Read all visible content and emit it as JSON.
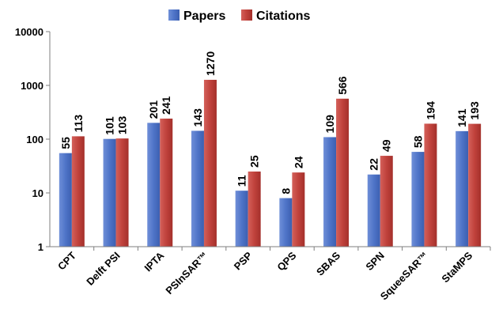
{
  "chart_data": {
    "type": "bar",
    "yscale": "log",
    "ylim": [
      1,
      10000
    ],
    "yticks": [
      "1",
      "10",
      "100",
      "1000",
      "10000"
    ],
    "grid": false,
    "legend_position": "top",
    "categories": [
      "CPT",
      "Delft PSI",
      "IPTA",
      "PSInSAR™",
      "PSP",
      "QPS",
      "SBAS",
      "SPN",
      "SqueeSAR™",
      "StaMPS"
    ],
    "series": [
      {
        "name": "Papers",
        "color": "#4f74c8",
        "values": [
          55,
          101,
          201,
          143,
          11,
          8,
          109,
          22,
          58,
          141
        ]
      },
      {
        "name": "Citations",
        "color": "#c0423c",
        "values": [
          113,
          103,
          241,
          1270,
          25,
          24,
          566,
          49,
          194,
          193
        ]
      }
    ]
  }
}
